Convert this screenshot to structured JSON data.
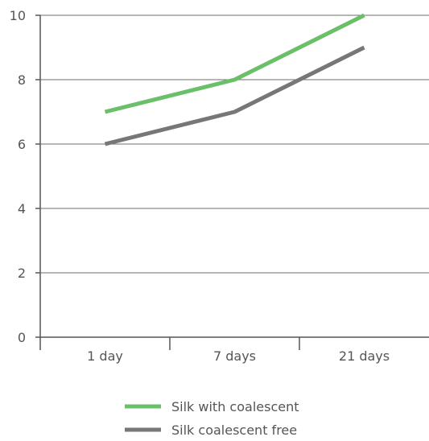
{
  "chart_data": {
    "type": "line",
    "title": "",
    "xlabel": "",
    "ylabel": "",
    "categories": [
      "1 day",
      "7 days",
      "21 days"
    ],
    "ylim": [
      0,
      10
    ],
    "yticks": [
      0,
      2,
      4,
      6,
      8,
      10
    ],
    "grid": true,
    "legend_position": "bottom",
    "series": [
      {
        "name": "Silk with coalescent",
        "values": [
          7,
          8,
          10
        ],
        "color": "#6abf69"
      },
      {
        "name": "Silk coalescent free",
        "values": [
          6,
          7,
          9
        ],
        "color": "#777777"
      }
    ]
  }
}
